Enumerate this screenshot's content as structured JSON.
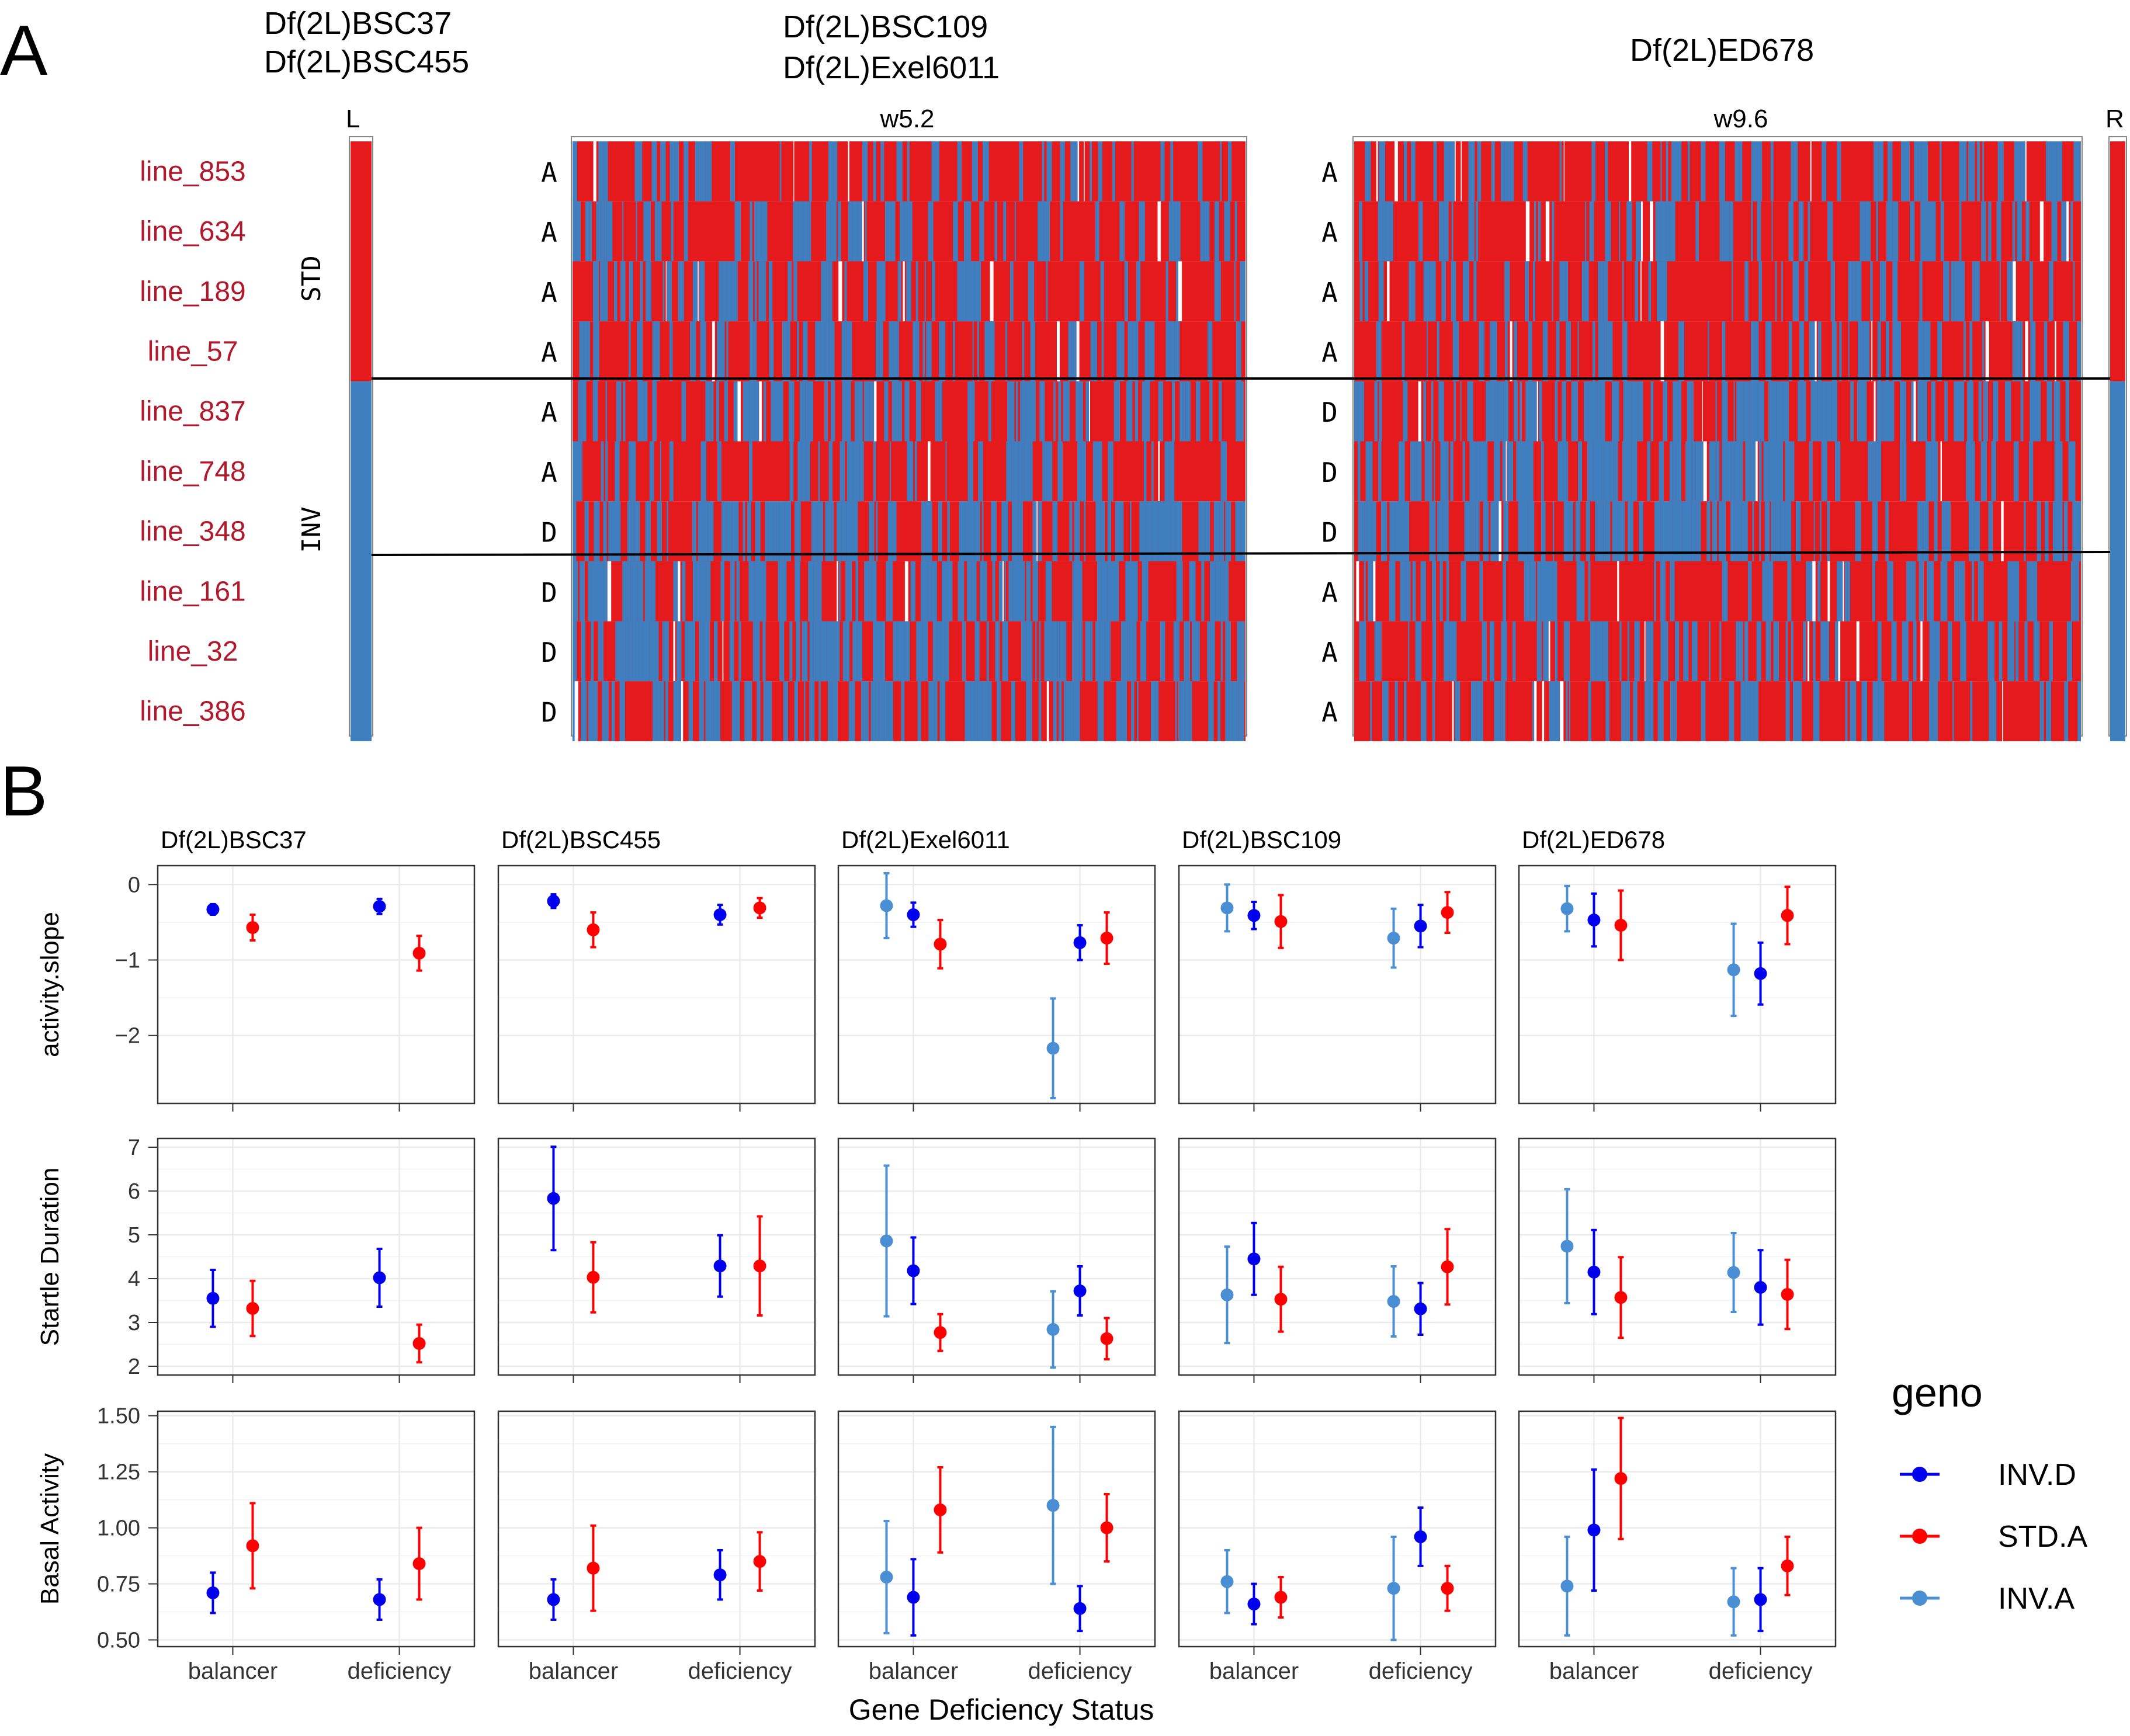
{
  "colors": {
    "red": "#e41a1c",
    "blue": "#3f7fc0",
    "inv_d": "#0000ee",
    "std_a": "#ff0000",
    "inv_a": "#4a8fd4",
    "line_label": "#b2182b",
    "panel_border": "#333333",
    "grid": "#ebebeb"
  },
  "panel_a": {
    "letter": "A",
    "top_labels": {
      "left_group": [
        "Df(2L)BSC37",
        "Df(2L)BSC455"
      ],
      "middle_group": [
        "Df(2L)BSC109",
        "Df(2L)Exel6011"
      ],
      "right_group": [
        "Df(2L)ED678"
      ]
    },
    "edge_labels": {
      "left": "L",
      "right": "R"
    },
    "window_labels": [
      "w5.2",
      "w9.6"
    ],
    "group_labels": [
      "STD",
      "INV"
    ],
    "lines": [
      {
        "name": "line_853",
        "w52": "A",
        "w96": "A"
      },
      {
        "name": "line_634",
        "w52": "A",
        "w96": "A"
      },
      {
        "name": "line_189",
        "w52": "A",
        "w96": "A"
      },
      {
        "name": "line_57",
        "w52": "A",
        "w96": "A"
      },
      {
        "name": "line_837",
        "w52": "A",
        "w96": "D"
      },
      {
        "name": "line_748",
        "w52": "A",
        "w96": "D"
      },
      {
        "name": "line_348",
        "w52": "D",
        "w96": "D"
      },
      {
        "name": "line_161",
        "w52": "D",
        "w96": "A"
      },
      {
        "name": "line_32",
        "w52": "D",
        "w96": "A"
      },
      {
        "name": "line_386",
        "w52": "D",
        "w96": "A"
      }
    ]
  },
  "panel_b": {
    "letter": "B",
    "xlabel": "Gene Deficiency Status",
    "legend": {
      "title": "geno",
      "items": [
        {
          "label": "INV.D",
          "color": "#0000ee"
        },
        {
          "label": "STD.A",
          "color": "#ff0000"
        },
        {
          "label": "INV.A",
          "color": "#4a8fd4"
        }
      ]
    }
  },
  "chart_data": {
    "type": "scatter",
    "subtype": "point with error bars, faceted",
    "facets_columns": [
      "Df(2L)BSC37",
      "Df(2L)BSC455",
      "Df(2L)Exel6011",
      "Df(2L)BSC109",
      "Df(2L)ED678"
    ],
    "categories": [
      "balancer",
      "deficiency"
    ],
    "rows": [
      {
        "ylabel": "activity.slope",
        "ylim": [
          -2.9,
          0.25
        ],
        "yticks": [
          0,
          -1,
          -2
        ],
        "tick_labels": [
          "0",
          "−1",
          "−2"
        ],
        "facets": [
          {
            "balancer": {
              "INV.D": [
                -0.33,
                0.07
              ],
              "STD.A": [
                -0.57,
                0.17
              ]
            },
            "deficiency": {
              "INV.D": [
                -0.29,
                0.1
              ],
              "STD.A": [
                -0.91,
                0.23
              ]
            }
          },
          {
            "balancer": {
              "INV.D": [
                -0.22,
                0.09
              ],
              "STD.A": [
                -0.6,
                0.23
              ]
            },
            "deficiency": {
              "INV.D": [
                -0.4,
                0.13
              ],
              "STD.A": [
                -0.31,
                0.13
              ]
            }
          },
          {
            "balancer": {
              "INV.A": [
                -0.28,
                0.43
              ],
              "INV.D": [
                -0.4,
                0.16
              ],
              "STD.A": [
                -0.79,
                0.32
              ]
            },
            "deficiency": {
              "INV.A": [
                -2.17,
                0.66
              ],
              "INV.D": [
                -0.77,
                0.23
              ],
              "STD.A": [
                -0.71,
                0.34
              ]
            }
          },
          {
            "balancer": {
              "INV.A": [
                -0.31,
                0.31
              ],
              "INV.D": [
                -0.41,
                0.18
              ],
              "STD.A": [
                -0.49,
                0.35
              ]
            },
            "deficiency": {
              "INV.A": [
                -0.71,
                0.39
              ],
              "INV.D": [
                -0.55,
                0.28
              ],
              "STD.A": [
                -0.37,
                0.27
              ]
            }
          },
          {
            "balancer": {
              "INV.A": [
                -0.32,
                0.3
              ],
              "INV.D": [
                -0.47,
                0.35
              ],
              "STD.A": [
                -0.54,
                0.46
              ]
            },
            "deficiency": {
              "INV.A": [
                -1.13,
                0.61
              ],
              "INV.D": [
                -1.18,
                0.41
              ],
              "STD.A": [
                -0.41,
                0.38
              ]
            }
          }
        ]
      },
      {
        "ylabel": "Startle Duration",
        "ylim": [
          1.8,
          7.2
        ],
        "yticks": [
          2,
          3,
          4,
          5,
          6,
          7
        ],
        "tick_labels": [
          "2",
          "3",
          "4",
          "5",
          "6",
          "7"
        ],
        "facets": [
          {
            "balancer": {
              "INV.D": [
                3.55,
                0.65
              ],
              "STD.A": [
                3.32,
                0.63
              ]
            },
            "deficiency": {
              "INV.D": [
                4.02,
                0.66
              ],
              "STD.A": [
                2.52,
                0.43
              ]
            }
          },
          {
            "balancer": {
              "INV.D": [
                5.83,
                1.18
              ],
              "STD.A": [
                4.03,
                0.8
              ]
            },
            "deficiency": {
              "INV.D": [
                4.29,
                0.7
              ],
              "STD.A": [
                4.29,
                1.13
              ]
            }
          },
          {
            "balancer": {
              "INV.A": [
                4.86,
                1.72
              ],
              "INV.D": [
                4.18,
                0.76
              ],
              "STD.A": [
                2.77,
                0.42
              ]
            },
            "deficiency": {
              "INV.A": [
                2.84,
                0.87
              ],
              "INV.D": [
                3.72,
                0.56
              ],
              "STD.A": [
                2.63,
                0.47
              ]
            }
          },
          {
            "balancer": {
              "INV.A": [
                3.63,
                1.1
              ],
              "INV.D": [
                4.45,
                0.82
              ],
              "STD.A": [
                3.53,
                0.74
              ]
            },
            "deficiency": {
              "INV.A": [
                3.48,
                0.8
              ],
              "INV.D": [
                3.31,
                0.59
              ],
              "STD.A": [
                4.27,
                0.86
              ]
            }
          },
          {
            "balancer": {
              "INV.A": [
                4.74,
                1.3
              ],
              "INV.D": [
                4.15,
                0.96
              ],
              "STD.A": [
                3.57,
                0.92
              ]
            },
            "deficiency": {
              "INV.A": [
                4.14,
                0.9
              ],
              "INV.D": [
                3.8,
                0.85
              ],
              "STD.A": [
                3.64,
                0.79
              ]
            }
          }
        ]
      },
      {
        "ylabel": "Basal Activity",
        "ylim": [
          0.47,
          1.52
        ],
        "yticks": [
          0.5,
          0.75,
          1.0,
          1.25,
          1.5
        ],
        "tick_labels": [
          "0.50",
          "0.75",
          "1.00",
          "1.25",
          "1.50"
        ],
        "facets": [
          {
            "balancer": {
              "INV.D": [
                0.71,
                0.09
              ],
              "STD.A": [
                0.92,
                0.19
              ]
            },
            "deficiency": {
              "INV.D": [
                0.68,
                0.09
              ],
              "STD.A": [
                0.84,
                0.16
              ]
            }
          },
          {
            "balancer": {
              "INV.D": [
                0.68,
                0.09
              ],
              "STD.A": [
                0.82,
                0.19
              ]
            },
            "deficiency": {
              "INV.D": [
                0.79,
                0.11
              ],
              "STD.A": [
                0.85,
                0.13
              ]
            }
          },
          {
            "balancer": {
              "INV.A": [
                0.78,
                0.25
              ],
              "INV.D": [
                0.69,
                0.17
              ],
              "STD.A": [
                1.08,
                0.19
              ]
            },
            "deficiency": {
              "INV.A": [
                1.1,
                0.35
              ],
              "INV.D": [
                0.64,
                0.1
              ],
              "STD.A": [
                1.0,
                0.15
              ]
            }
          },
          {
            "balancer": {
              "INV.A": [
                0.76,
                0.14
              ],
              "INV.D": [
                0.66,
                0.09
              ],
              "STD.A": [
                0.69,
                0.09
              ]
            },
            "deficiency": {
              "INV.A": [
                0.73,
                0.23
              ],
              "INV.D": [
                0.96,
                0.13
              ],
              "STD.A": [
                0.73,
                0.1
              ]
            }
          },
          {
            "balancer": {
              "INV.A": [
                0.74,
                0.22
              ],
              "INV.D": [
                0.99,
                0.27
              ],
              "STD.A": [
                1.22,
                0.27
              ]
            },
            "deficiency": {
              "INV.A": [
                0.67,
                0.15
              ],
              "INV.D": [
                0.68,
                0.14
              ],
              "STD.A": [
                0.83,
                0.13
              ]
            }
          }
        ]
      }
    ]
  }
}
